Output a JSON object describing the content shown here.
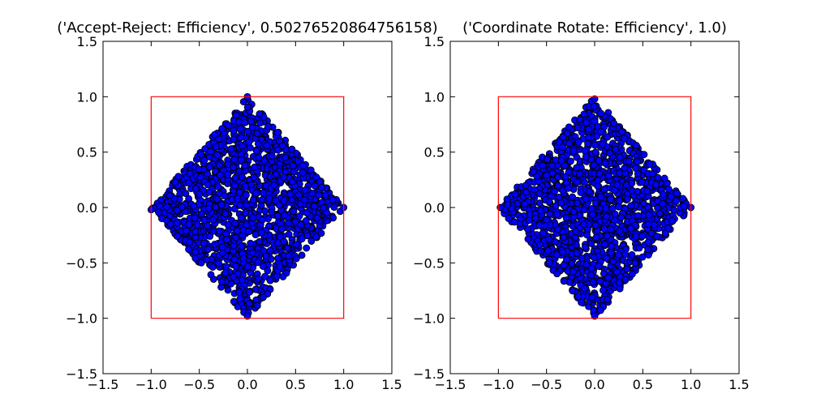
{
  "figure": {
    "background": "#ffffff"
  },
  "chart_data": [
    {
      "type": "scatter",
      "title": "('Accept-Reject: Efficiency', 0.50276520864756158)",
      "xlabel": "",
      "ylabel": "",
      "xlim": [
        -1.5,
        1.5
      ],
      "ylim": [
        -1.5,
        1.5
      ],
      "xticks": [
        -1.5,
        -1.0,
        -0.5,
        0.0,
        0.5,
        1.0,
        1.5
      ],
      "yticks": [
        -1.5,
        -1.0,
        -0.5,
        0.0,
        0.5,
        1.0,
        1.5
      ],
      "xtick_labels": [
        "−1.5",
        "−1.0",
        "−0.5",
        "0.0",
        "0.5",
        "1.0",
        "1.5"
      ],
      "ytick_labels": [
        "−1.5",
        "−1.0",
        "−0.5",
        "0.0",
        "0.5",
        "1.0",
        "1.5"
      ],
      "grid": false,
      "legend": "none",
      "marker_color": "#0000ff",
      "marker_edge_color": "#000000",
      "series": [
        {
          "kind": "points",
          "region": "|x| + |y| <= 1",
          "count": 1500,
          "extremes": [
            [
              -1.0,
              -0.02
            ],
            [
              1.0,
              0.0
            ],
            [
              0.0,
              1.0
            ],
            [
              0.0,
              -0.98
            ]
          ]
        },
        {
          "kind": "box_outline",
          "color": "#ff0000",
          "x": [
            -1,
            1,
            1,
            -1,
            -1
          ],
          "y": [
            -1,
            -1,
            1,
            1,
            -1
          ]
        }
      ]
    },
    {
      "type": "scatter",
      "title": "('Coordinate Rotate: Efficiency', 1.0)",
      "xlabel": "",
      "ylabel": "",
      "xlim": [
        -1.5,
        1.5
      ],
      "ylim": [
        -1.5,
        1.5
      ],
      "xticks": [
        -1.5,
        -1.0,
        -0.5,
        0.0,
        0.5,
        1.0,
        1.5
      ],
      "yticks": [
        -1.5,
        -1.0,
        -0.5,
        0.0,
        0.5,
        1.0,
        1.5
      ],
      "xtick_labels": [
        "−1.5",
        "−1.0",
        "−0.5",
        "0.0",
        "0.5",
        "1.0",
        "1.5"
      ],
      "ytick_labels": [
        "−1.5",
        "−1.0",
        "−0.5",
        "0.0",
        "0.5",
        "1.0",
        "1.5"
      ],
      "grid": false,
      "legend": "none",
      "marker_color": "#0000ff",
      "marker_edge_color": "#000000",
      "series": [
        {
          "kind": "points",
          "region": "|x| + |y| <= 1",
          "count": 1500,
          "extremes": [
            [
              -0.98,
              0.0
            ],
            [
              1.0,
              0.0
            ],
            [
              0.0,
              0.98
            ],
            [
              0.0,
              -0.98
            ]
          ]
        },
        {
          "kind": "box_outline",
          "color": "#ff0000",
          "x": [
            -1,
            1,
            1,
            -1,
            -1
          ],
          "y": [
            -1,
            -1,
            1,
            1,
            -1
          ]
        }
      ]
    }
  ]
}
